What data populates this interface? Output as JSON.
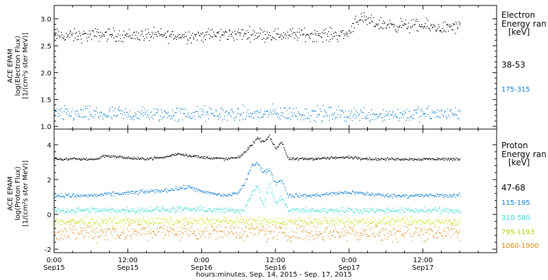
{
  "x_axis": {
    "label": "hours:minutes, Sep. 14, 2015 - Sep. 17, 2015",
    "ticks": [
      {
        "time": "0:00",
        "day": "Sep15",
        "hour": 0
      },
      {
        "time": "12:00",
        "day": "Sep15",
        "hour": 12
      },
      {
        "time": "0:00",
        "day": "Sep16",
        "hour": 24
      },
      {
        "time": "12:00",
        "day": "Sep16",
        "hour": 36
      },
      {
        "time": "0:00",
        "day": "Sep17",
        "hour": 48
      },
      {
        "time": "12:00",
        "day": "Sep17",
        "hour": 60
      }
    ]
  },
  "chart_data": [
    {
      "type": "scatter",
      "ylabel_lines": [
        "ACE EPAM",
        "log(Electron Flux)",
        "[1/(cm²s ster MeV)]"
      ],
      "ylim": [
        0.95,
        3.25
      ],
      "yticks": [
        1.0,
        1.5,
        2.0,
        2.5,
        3.0
      ],
      "ytick_labels": [
        "1.0",
        "1.5",
        "2.0",
        "2.5",
        "3.0"
      ],
      "xlim": [
        0,
        72
      ],
      "legend": {
        "title_lines": [
          "Electron",
          "Energy ran"
        ],
        "unit": "[keV]"
      },
      "series": [
        {
          "name": "38-53",
          "color": "#000000",
          "x": [
            0,
            4,
            8,
            12,
            16,
            20,
            24,
            28,
            32,
            36,
            40,
            44,
            47,
            47.9,
            49,
            50.5,
            52,
            54,
            56,
            58,
            60,
            62,
            64,
            66
          ],
          "y": [
            2.7,
            2.69,
            2.72,
            2.7,
            2.71,
            2.69,
            2.7,
            2.72,
            2.73,
            2.71,
            2.72,
            2.71,
            2.72,
            2.74,
            3.0,
            2.98,
            2.93,
            2.9,
            2.89,
            2.88,
            2.87,
            2.85,
            2.84,
            2.86
          ],
          "spread": 0.06
        },
        {
          "name": "175-315",
          "color": "#0a7ad0",
          "x": [
            0,
            8,
            16,
            24,
            32,
            36,
            40,
            48,
            56,
            66
          ],
          "y": [
            1.24,
            1.23,
            1.23,
            1.24,
            1.23,
            1.25,
            1.24,
            1.23,
            1.23,
            1.24
          ],
          "spread": 0.07
        }
      ]
    },
    {
      "type": "scatter",
      "ylabel_lines": [
        "ACE EPAM",
        "log(Proton Flux)",
        "[1/(cm²s ster MeV)]"
      ],
      "ylim": [
        -2.2,
        4.9
      ],
      "yticks": [
        -2,
        0,
        2,
        4
      ],
      "ytick_labels": [
        "-2",
        "0",
        "2",
        "4"
      ],
      "xlim": [
        0,
        72
      ],
      "legend": {
        "title_lines": [
          "Proton",
          "Energy ran"
        ],
        "unit": "[keV]"
      },
      "series": [
        {
          "name": "47-68",
          "color": "#000000",
          "x": [
            0,
            7,
            8,
            14,
            18,
            20,
            24,
            28,
            30,
            31,
            32,
            33,
            34,
            35,
            36,
            37,
            38,
            40,
            48,
            52,
            66
          ],
          "y": [
            3.2,
            3.2,
            3.4,
            3.2,
            3.3,
            3.5,
            3.3,
            3.2,
            3.3,
            3.6,
            4.0,
            4.4,
            4.2,
            4.5,
            3.8,
            4.2,
            3.2,
            3.2,
            3.3,
            3.2,
            3.2
          ],
          "spread": 0.04
        },
        {
          "name": "115-195",
          "color": "#0a7ad0",
          "x": [
            0,
            6,
            10,
            14,
            18,
            22,
            24,
            28,
            30,
            31,
            32,
            33,
            34,
            35,
            36,
            37,
            38,
            42,
            48,
            54,
            66
          ],
          "y": [
            1.1,
            1.1,
            1.2,
            1.3,
            1.4,
            1.6,
            1.3,
            1.1,
            1.3,
            1.8,
            2.8,
            3.0,
            2.4,
            2.6,
            1.8,
            2.0,
            1.1,
            1.1,
            1.3,
            1.1,
            1.1
          ],
          "spread": 0.06
        },
        {
          "name": "310-580",
          "color": "#30d8d8",
          "x": [
            0,
            10,
            18,
            24,
            28,
            30,
            31,
            32,
            33,
            34,
            35,
            36,
            37,
            38,
            48,
            66
          ],
          "y": [
            0.25,
            0.25,
            0.3,
            0.3,
            0.25,
            0.2,
            0.4,
            1.2,
            1.6,
            0.5,
            1.8,
            0.6,
            1.0,
            0.25,
            0.25,
            0.25
          ],
          "spread": 0.08
        },
        {
          "name": "795-1193",
          "color": "#c8dc00",
          "x": [
            0,
            12,
            24,
            36,
            48,
            66
          ],
          "y": [
            -0.4,
            -0.4,
            -0.38,
            -0.4,
            -0.4,
            -0.4
          ],
          "spread": 0.12
        },
        {
          "name": "1060-1900",
          "color": "#e0840a",
          "x": [
            0,
            12,
            24,
            36,
            48,
            66
          ],
          "y": [
            -1.0,
            -1.0,
            -0.95,
            -1.0,
            -1.0,
            -1.0
          ],
          "spread": 0.25
        }
      ]
    }
  ]
}
